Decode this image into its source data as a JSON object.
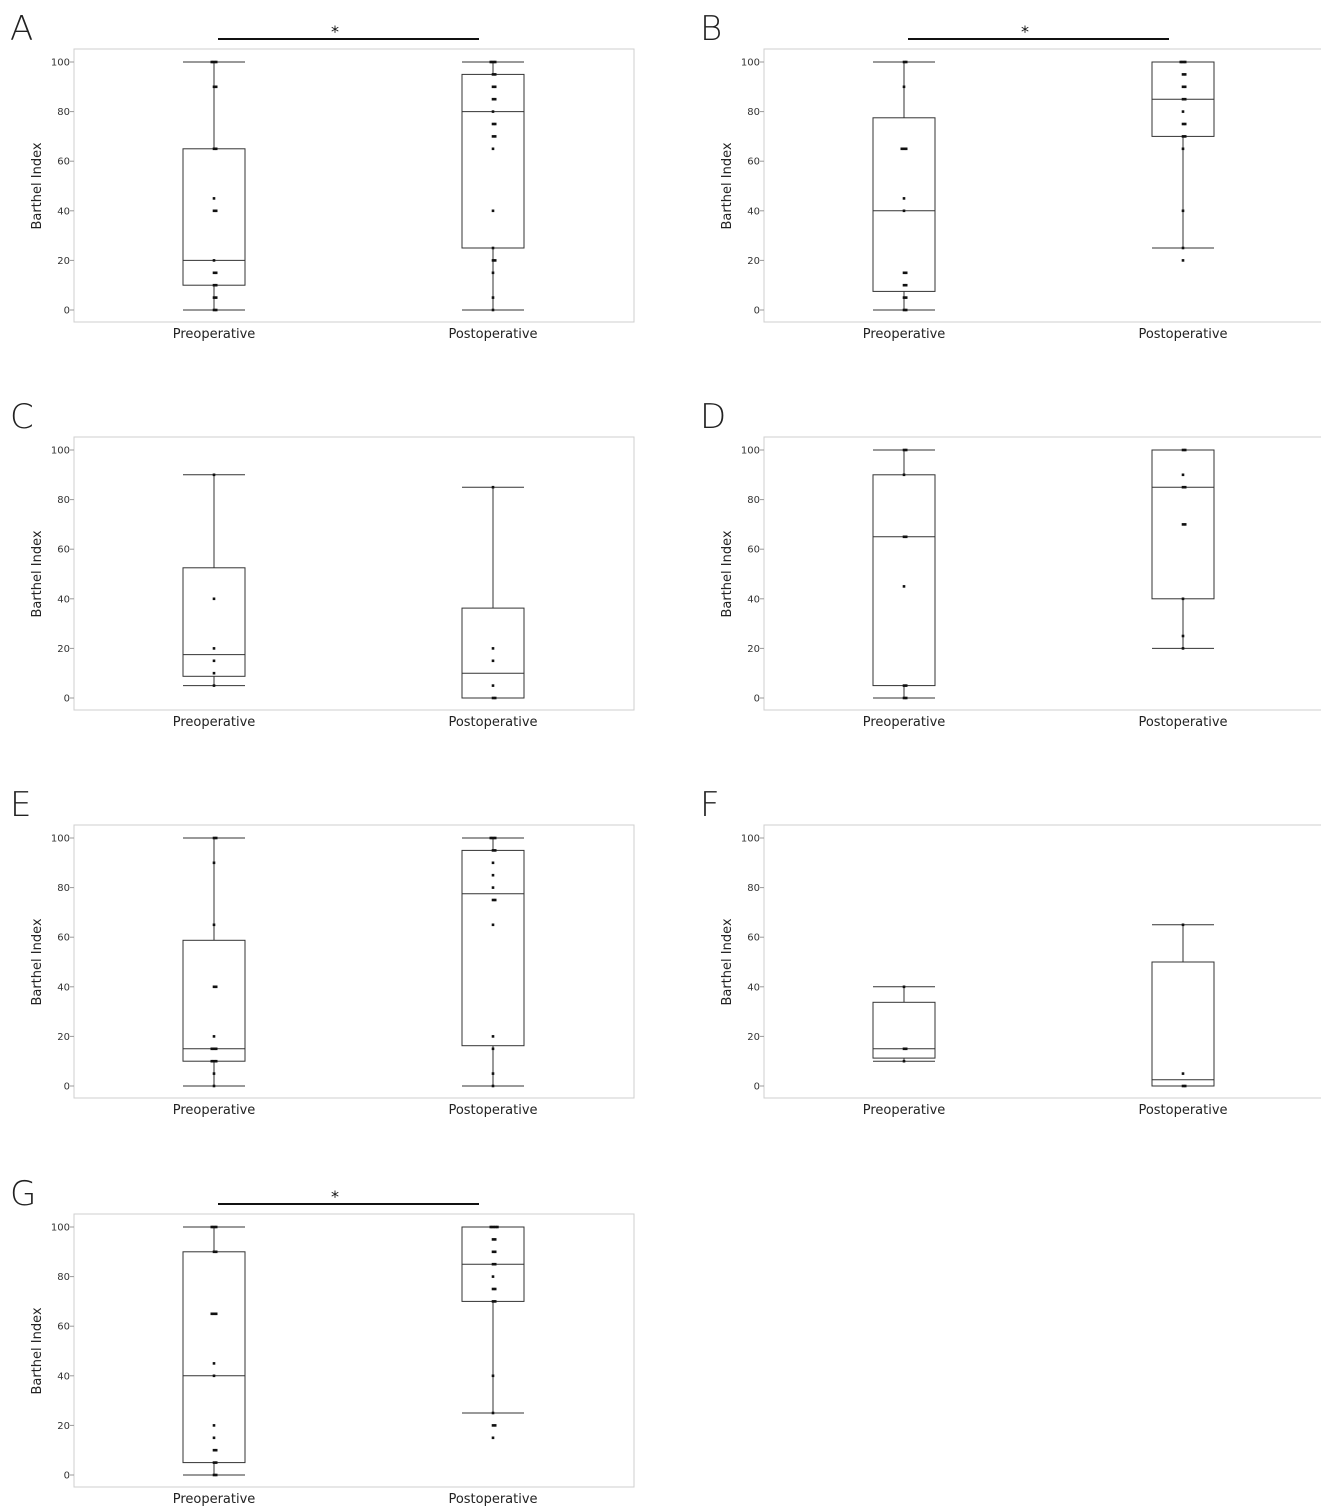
{
  "chart_data": [
    {
      "type": "box",
      "panel_label": "A",
      "significance": "*",
      "categories": [
        "Preoperative",
        "Postoperative"
      ],
      "ylabel": "Barthel Index",
      "ylim": [
        0,
        100
      ],
      "yticks": [
        "0",
        "20",
        "40",
        "60",
        "80",
        "100"
      ],
      "boxes": [
        {
          "whisker_low": 0,
          "q1": 10,
          "median": 20,
          "q3": 65,
          "whisker_high": 100,
          "points": [
            0,
            0,
            5,
            5,
            10,
            10,
            15,
            15,
            20,
            40,
            40,
            45,
            65,
            65,
            90,
            90,
            100,
            100,
            100
          ]
        },
        {
          "whisker_low": 0,
          "q1": 25,
          "median": 80,
          "q3": 95,
          "whisker_high": 100,
          "points": [
            0,
            5,
            15,
            20,
            20,
            25,
            40,
            65,
            70,
            70,
            75,
            75,
            80,
            85,
            85,
            90,
            90,
            95,
            95,
            100,
            100,
            100
          ]
        }
      ]
    },
    {
      "type": "box",
      "panel_label": "B",
      "significance": "*",
      "categories": [
        "Preoperative",
        "Postoperative"
      ],
      "ylabel": "Barthel Index",
      "ylim": [
        0,
        100
      ],
      "yticks": [
        "0",
        "20",
        "40",
        "60",
        "80",
        "100"
      ],
      "boxes": [
        {
          "whisker_low": 0,
          "q1": 7.5,
          "median": 40,
          "q3": 77.5,
          "whisker_high": 100,
          "points": [
            0,
            0,
            5,
            5,
            10,
            10,
            15,
            15,
            40,
            45,
            65,
            65,
            65,
            90,
            100,
            100
          ]
        },
        {
          "whisker_low": 25,
          "q1": 70,
          "median": 85,
          "q3": 100,
          "whisker_high": 100,
          "points": [
            20,
            25,
            40,
            65,
            70,
            70,
            75,
            75,
            80,
            85,
            85,
            90,
            90,
            95,
            95,
            100,
            100,
            100
          ]
        }
      ]
    },
    {
      "type": "box",
      "panel_label": "C",
      "significance": "",
      "categories": [
        "Preoperative",
        "Postoperative"
      ],
      "ylabel": "Barthel Index",
      "ylim": [
        0,
        100
      ],
      "yticks": [
        "0",
        "20",
        "40",
        "60",
        "80",
        "100"
      ],
      "boxes": [
        {
          "whisker_low": 5,
          "q1": 8.75,
          "median": 17.5,
          "q3": 52.5,
          "whisker_high": 90,
          "points": [
            5,
            10,
            15,
            20,
            40,
            90
          ]
        },
        {
          "whisker_low": 0,
          "q1": 0,
          "median": 10,
          "q3": 36.25,
          "whisker_high": 85,
          "points": [
            0,
            0,
            5,
            15,
            20,
            85
          ]
        }
      ]
    },
    {
      "type": "box",
      "panel_label": "D",
      "significance": "",
      "categories": [
        "Preoperative",
        "Postoperative"
      ],
      "ylabel": "Barthel Index",
      "ylim": [
        0,
        100
      ],
      "yticks": [
        "0",
        "20",
        "40",
        "60",
        "80",
        "100"
      ],
      "boxes": [
        {
          "whisker_low": 0,
          "q1": 5,
          "median": 65,
          "q3": 90,
          "whisker_high": 100,
          "points": [
            0,
            0,
            5,
            5,
            45,
            65,
            65,
            90,
            100,
            100
          ]
        },
        {
          "whisker_low": 20,
          "q1": 40,
          "median": 85,
          "q3": 100,
          "whisker_high": 100,
          "points": [
            20,
            25,
            40,
            70,
            70,
            85,
            85,
            90,
            100,
            100
          ]
        }
      ]
    },
    {
      "type": "box",
      "panel_label": "E",
      "significance": "",
      "categories": [
        "Preoperative",
        "Postoperative"
      ],
      "ylabel": "Barthel Index",
      "ylim": [
        0,
        100
      ],
      "yticks": [
        "0",
        "20",
        "40",
        "60",
        "80",
        "100"
      ],
      "boxes": [
        {
          "whisker_low": 0,
          "q1": 10,
          "median": 15,
          "q3": 58.75,
          "whisker_high": 100,
          "points": [
            0,
            5,
            10,
            10,
            10,
            15,
            15,
            15,
            20,
            40,
            40,
            65,
            90,
            100,
            100
          ]
        },
        {
          "whisker_low": 0,
          "q1": 16.25,
          "median": 77.5,
          "q3": 95,
          "whisker_high": 100,
          "points": [
            0,
            5,
            15,
            20,
            65,
            75,
            75,
            80,
            85,
            90,
            95,
            95,
            100,
            100,
            100
          ]
        }
      ]
    },
    {
      "type": "box",
      "panel_label": "F",
      "significance": "",
      "categories": [
        "Preoperative",
        "Postoperative"
      ],
      "ylabel": "Barthel Index",
      "ylim": [
        0,
        100
      ],
      "yticks": [
        "0",
        "20",
        "40",
        "60",
        "80",
        "100"
      ],
      "boxes": [
        {
          "whisker_low": 10,
          "q1": 11.25,
          "median": 15,
          "q3": 33.75,
          "whisker_high": 40,
          "points": [
            10,
            15,
            15,
            40
          ]
        },
        {
          "whisker_low": 0,
          "q1": 0,
          "median": 2.5,
          "q3": 50,
          "whisker_high": 65,
          "points": [
            0,
            0,
            5,
            65
          ]
        }
      ]
    },
    {
      "type": "box",
      "panel_label": "G",
      "significance": "*",
      "categories": [
        "Preoperative",
        "Postoperative"
      ],
      "ylabel": "Barthel Index",
      "ylim": [
        0,
        100
      ],
      "yticks": [
        "0",
        "20",
        "40",
        "60",
        "80",
        "100"
      ],
      "boxes": [
        {
          "whisker_low": 0,
          "q1": 5,
          "median": 40,
          "q3": 90,
          "whisker_high": 100,
          "points": [
            0,
            0,
            5,
            5,
            10,
            10,
            15,
            20,
            40,
            45,
            65,
            65,
            65,
            90,
            90,
            100,
            100,
            100
          ]
        },
        {
          "whisker_low": 25,
          "q1": 70,
          "median": 85,
          "q3": 100,
          "whisker_high": 100,
          "points": [
            15,
            20,
            20,
            25,
            40,
            70,
            70,
            75,
            75,
            80,
            85,
            85,
            90,
            90,
            95,
            95,
            100,
            100,
            100,
            100
          ]
        }
      ]
    }
  ]
}
